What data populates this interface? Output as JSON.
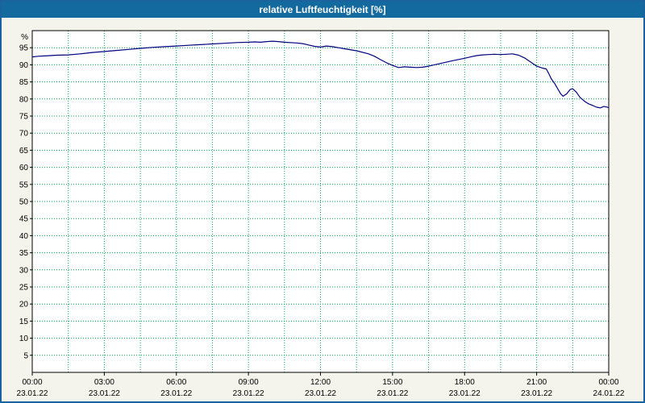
{
  "window": {
    "title": "relative Luftfeuchtigkeit [%]"
  },
  "colors": {
    "title_bar_bg": "#136a9e",
    "title_text": "#ffffff",
    "page_bg": "#f4f3ec",
    "plot_bg": "#ffffff",
    "window_border": "#1b629f",
    "grid": "#00a651",
    "axis": "#000000",
    "line": "#000080"
  },
  "chart_data": {
    "type": "line",
    "title": "relative Luftfeuchtigkeit [%]",
    "xlabel": "",
    "ylabel": "%",
    "ylim": [
      0,
      100
    ],
    "yticks": [
      5,
      10,
      15,
      20,
      25,
      30,
      35,
      40,
      45,
      50,
      55,
      60,
      65,
      70,
      75,
      80,
      85,
      90,
      95
    ],
    "xlim": [
      0,
      24
    ],
    "x_unit": "hours since 23.01.22 00:00",
    "grid": {
      "style": "dotted",
      "x_interval_hours": 1.5,
      "y_interval": 5
    },
    "legend": "none",
    "xticks": [
      {
        "hour": 0,
        "time": "00:00",
        "date": "23.01.22"
      },
      {
        "hour": 3,
        "time": "03:00",
        "date": "23.01.22"
      },
      {
        "hour": 6,
        "time": "06:00",
        "date": "23.01.22"
      },
      {
        "hour": 9,
        "time": "09:00",
        "date": "23.01.22"
      },
      {
        "hour": 12,
        "time": "12:00",
        "date": "23.01.22"
      },
      {
        "hour": 15,
        "time": "15:00",
        "date": "23.01.22"
      },
      {
        "hour": 18,
        "time": "18:00",
        "date": "23.01.22"
      },
      {
        "hour": 21,
        "time": "21:00",
        "date": "23.01.22"
      },
      {
        "hour": 24,
        "time": "00:00",
        "date": "24.01.22"
      }
    ],
    "series": [
      {
        "name": "relative Luftfeuchtigkeit [%]",
        "points": [
          [
            0,
            92.3
          ],
          [
            0.25,
            92.5
          ],
          [
            0.5,
            92.6
          ],
          [
            0.75,
            92.7
          ],
          [
            1,
            92.8
          ],
          [
            1.5,
            92.9
          ],
          [
            2,
            93.2
          ],
          [
            2.25,
            93.4
          ],
          [
            2.5,
            93.6
          ],
          [
            3,
            93.9
          ],
          [
            3.5,
            94.2
          ],
          [
            4,
            94.5
          ],
          [
            4.5,
            94.8
          ],
          [
            5,
            95.1
          ],
          [
            5.5,
            95.3
          ],
          [
            6,
            95.5
          ],
          [
            6.5,
            95.7
          ],
          [
            7,
            95.9
          ],
          [
            7.5,
            96.1
          ],
          [
            8,
            96.3
          ],
          [
            8.5,
            96.5
          ],
          [
            9,
            96.6
          ],
          [
            9.25,
            96.7
          ],
          [
            9.5,
            96.6
          ],
          [
            9.75,
            96.8
          ],
          [
            10,
            96.9
          ],
          [
            10.25,
            96.8
          ],
          [
            10.5,
            96.6
          ],
          [
            11,
            96.4
          ],
          [
            11.25,
            96.2
          ],
          [
            11.5,
            95.8
          ],
          [
            11.75,
            95.4
          ],
          [
            12,
            95.2
          ],
          [
            12.25,
            95.5
          ],
          [
            12.5,
            95.3
          ],
          [
            12.75,
            95.0
          ],
          [
            13,
            94.7
          ],
          [
            13.5,
            94.1
          ],
          [
            14,
            93.2
          ],
          [
            14.25,
            92.5
          ],
          [
            14.5,
            91.5
          ],
          [
            14.75,
            90.6
          ],
          [
            15,
            89.8
          ],
          [
            15.25,
            89.2
          ],
          [
            15.5,
            89.4
          ],
          [
            15.75,
            89.3
          ],
          [
            16,
            89.2
          ],
          [
            16.25,
            89.3
          ],
          [
            16.5,
            89.6
          ],
          [
            17,
            90.4
          ],
          [
            17.5,
            91.2
          ],
          [
            18,
            91.9
          ],
          [
            18.25,
            92.3
          ],
          [
            18.5,
            92.7
          ],
          [
            18.75,
            92.9
          ],
          [
            19,
            93.0
          ],
          [
            19.25,
            93.1
          ],
          [
            19.5,
            93.0
          ],
          [
            19.75,
            93.1
          ],
          [
            20,
            93.2
          ],
          [
            20.25,
            92.8
          ],
          [
            20.5,
            92.0
          ],
          [
            20.75,
            90.8
          ],
          [
            21,
            89.6
          ],
          [
            21.25,
            89.0
          ],
          [
            21.4,
            88.8
          ],
          [
            21.5,
            87.5
          ],
          [
            21.6,
            86.0
          ],
          [
            21.75,
            84.5
          ],
          [
            22,
            81.5
          ],
          [
            22.1,
            80.8
          ],
          [
            22.25,
            81.5
          ],
          [
            22.4,
            82.8
          ],
          [
            22.5,
            83.0
          ],
          [
            22.65,
            82.0
          ],
          [
            22.8,
            80.5
          ],
          [
            23,
            79.3
          ],
          [
            23.15,
            78.6
          ],
          [
            23.3,
            78.2
          ],
          [
            23.5,
            77.6
          ],
          [
            23.65,
            77.4
          ],
          [
            23.8,
            77.8
          ],
          [
            24,
            77.5
          ]
        ]
      }
    ]
  }
}
